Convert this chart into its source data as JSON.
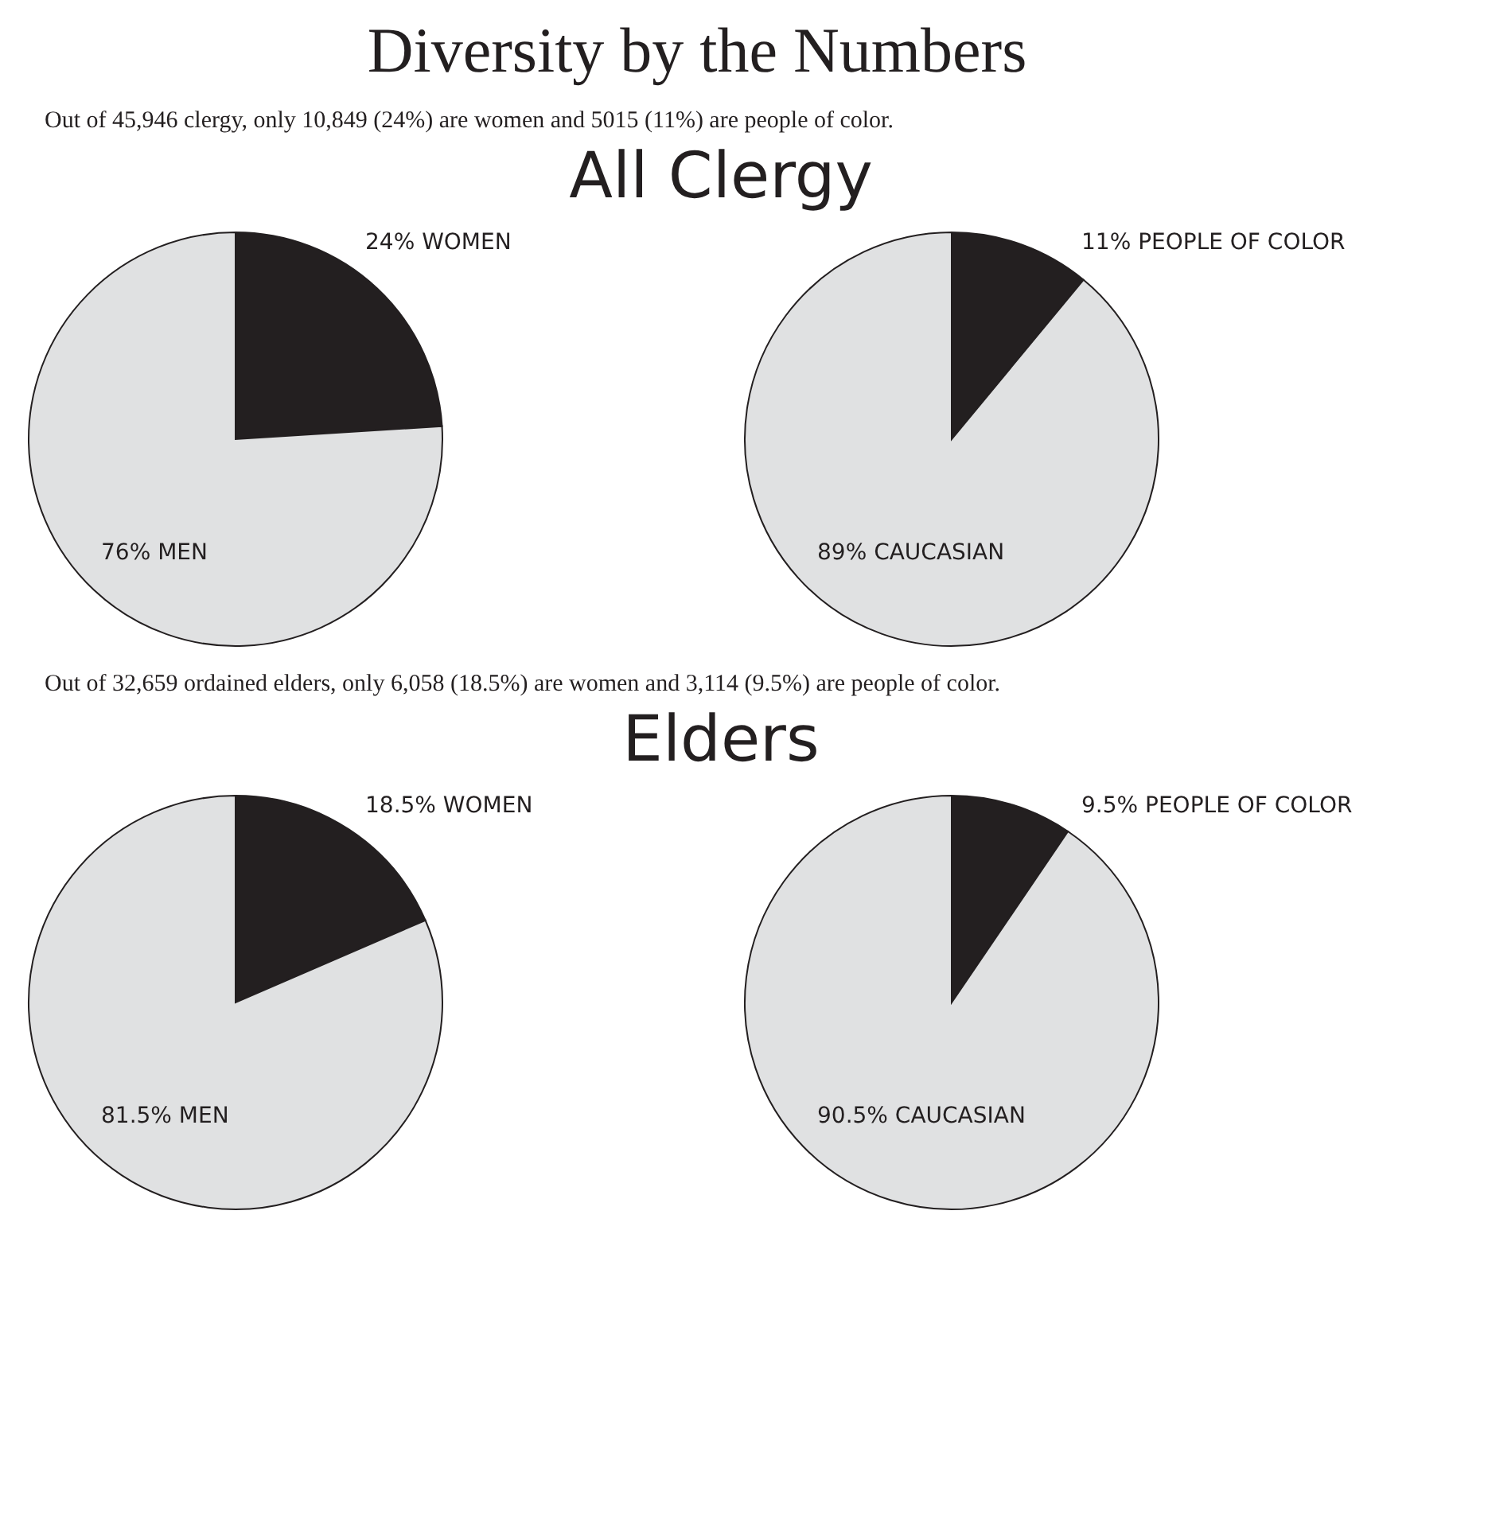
{
  "chart_data": [
    {
      "type": "pie",
      "title": "All Clergy",
      "subtitle": "Out of 45,946 clergy, only 10,849 (24%) are women and 5015 (11%) are people of color.",
      "annotations": [
        "Diversity by the Numbers"
      ],
      "categories": [
        "WOMEN",
        "MEN"
      ],
      "values": [
        24,
        76
      ],
      "colors": [
        "#231f20",
        "#e0e1e2"
      ],
      "value_labels": [
        "24%",
        "76%"
      ]
    },
    {
      "type": "pie",
      "categories": [
        "PEOPLE OF COLOR",
        "CAUCASIAN"
      ],
      "values": [
        11,
        89
      ],
      "colors": [
        "#231f20",
        "#e0e1e2"
      ],
      "value_labels": [
        "11%",
        "89%"
      ]
    },
    {
      "type": "pie",
      "title": "Elders",
      "subtitle": "Out of 32,659 ordained elders, only 6,058 (18.5%) are women and 3,114 (9.5%) are people of color.",
      "categories": [
        "WOMEN",
        "MEN"
      ],
      "values": [
        18.5,
        81.5
      ],
      "colors": [
        "#231f20",
        "#e0e1e2"
      ],
      "value_labels": [
        "18.5%",
        "81.5%"
      ]
    },
    {
      "type": "pie",
      "categories": [
        "PEOPLE OF COLOR",
        "CAUCASIAN"
      ],
      "values": [
        9.5,
        90.5
      ],
      "colors": [
        "#231f20",
        "#e0e1e2"
      ],
      "value_labels": [
        "9.5%",
        "90.5%"
      ]
    }
  ]
}
